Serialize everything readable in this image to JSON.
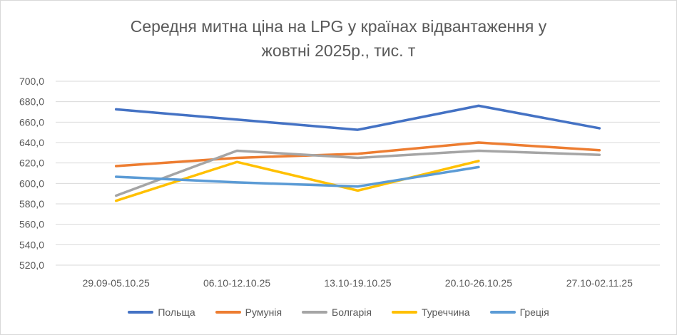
{
  "chart_data": {
    "type": "line",
    "title_lines": [
      "Середня митна ціна на LPG у країнах відвантаження у",
      "жовтні 2025р., тис. т"
    ],
    "xlabel": "",
    "ylabel": "",
    "categories": [
      "29.09-05.10.25",
      "06.10-12.10.25",
      "13.10-19.10.25",
      "20.10-26.10.25",
      "27.10-02.11.25"
    ],
    "ylim": [
      520,
      700
    ],
    "yticks": [
      "700,0",
      "680,0",
      "660,0",
      "640,0",
      "620,0",
      "600,0",
      "580,0",
      "560,0",
      "540,0",
      "520,0"
    ],
    "ytick_values": [
      700,
      680,
      660,
      640,
      620,
      600,
      580,
      560,
      540,
      520
    ],
    "grid": true,
    "legend_position": "bottom",
    "series": [
      {
        "name": "Польща",
        "color": "#4472c4",
        "values": [
          672.5,
          662.5,
          652.5,
          676,
          654
        ]
      },
      {
        "name": "Румунія",
        "color": "#ed7d31",
        "values": [
          617,
          625,
          629,
          640,
          632.5
        ]
      },
      {
        "name": "Болгарія",
        "color": "#a5a5a5",
        "values": [
          588,
          632,
          625,
          632,
          628
        ]
      },
      {
        "name": "Туреччина",
        "color": "#ffc000",
        "values": [
          583,
          621,
          593,
          622,
          null
        ]
      },
      {
        "name": "Греція",
        "color": "#5b9bd5",
        "values": [
          606.5,
          601,
          597,
          616,
          null
        ]
      }
    ]
  }
}
